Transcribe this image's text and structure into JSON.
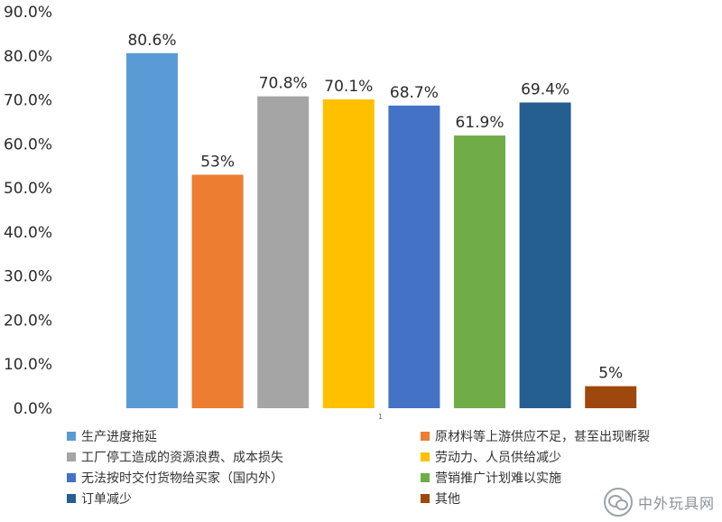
{
  "chart_data": {
    "type": "bar",
    "categories": [
      "生产进度拖延",
      "原材料等上游供应不足，甚至出现断裂",
      "工厂停工造成的资源浪费、成本损失",
      "劳动力、人员供给减少",
      "无法按时交付货物给买家（国内外）",
      "营销推广计划难以实施",
      "订单减少",
      "其他"
    ],
    "values": [
      80.6,
      53,
      70.8,
      70.1,
      68.7,
      61.9,
      69.4,
      5
    ],
    "data_labels": [
      "80.6%",
      "53%",
      "70.8%",
      "70.1%",
      "68.7%",
      "61.9%",
      "69.4%",
      "5%"
    ],
    "colors": [
      "#5b9bd5",
      "#ed7d31",
      "#a5a5a5",
      "#ffc000",
      "#4472c4",
      "#70ad47",
      "#255e91",
      "#9e480e"
    ],
    "ylim": [
      0,
      90
    ],
    "yticks": [
      "0.0%",
      "10.0%",
      "20.0%",
      "30.0%",
      "40.0%",
      "50.0%",
      "60.0%",
      "70.0%",
      "80.0%",
      "90.0%"
    ],
    "x_tick_label": "1",
    "grid": false,
    "legend_position": "bottom",
    "title": "",
    "xlabel": "",
    "ylabel": ""
  },
  "watermark": {
    "text": "中外玩具网",
    "icon": "wechat-icon"
  }
}
